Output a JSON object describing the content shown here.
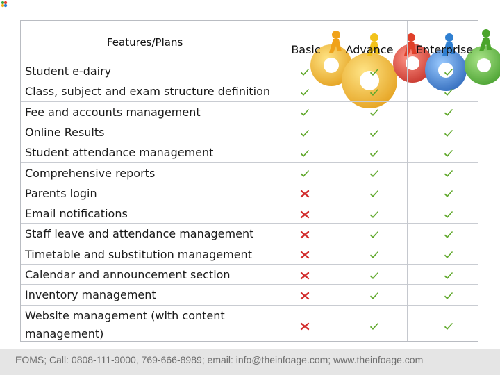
{
  "header": {
    "features_label": "Features/Plans",
    "plans": [
      "Basic",
      "Advance",
      "Enterprise"
    ]
  },
  "rows": [
    {
      "feature": "Student e-dairy",
      "basic": "yes",
      "advance": "yes",
      "enterprise": "yes"
    },
    {
      "feature": "Class, subject and exam structure definition",
      "basic": "yes",
      "advance": "yes",
      "enterprise": "yes"
    },
    {
      "feature": "Fee and accounts management",
      "basic": "yes",
      "advance": "yes",
      "enterprise": "yes"
    },
    {
      "feature": "Online Results",
      "basic": "yes",
      "advance": "yes",
      "enterprise": "yes"
    },
    {
      "feature": "Student attendance management",
      "basic": "yes",
      "advance": "yes",
      "enterprise": "yes"
    },
    {
      "feature": "Comprehensive reports",
      "basic": "yes",
      "advance": "yes",
      "enterprise": "yes"
    },
    {
      "feature": "Parents login",
      "basic": "no",
      "advance": "yes",
      "enterprise": "yes"
    },
    {
      "feature": "Email notifications",
      "basic": "no",
      "advance": "yes",
      "enterprise": "yes"
    },
    {
      "feature": "Staff leave and attendance management",
      "basic": "no",
      "advance": "yes",
      "enterprise": "yes"
    },
    {
      "feature": "Timetable and substitution management",
      "basic": "no",
      "advance": "yes",
      "enterprise": "yes"
    },
    {
      "feature": "Calendar and announcement section",
      "basic": "no",
      "advance": "yes",
      "enterprise": "yes"
    },
    {
      "feature": "Inventory management",
      "basic": "no",
      "advance": "yes",
      "enterprise": "yes"
    },
    {
      "feature": "Website management (with content management)",
      "basic": "no",
      "advance": "yes",
      "enterprise": "yes"
    }
  ],
  "footer": {
    "text": "EOMS; Call: 0808-111-9000, 769-666-8989; email: info@theinfoage.com; www.theinfoage.com"
  },
  "colors": {
    "check": "#5fa82a",
    "cross": "#d22b2b"
  }
}
